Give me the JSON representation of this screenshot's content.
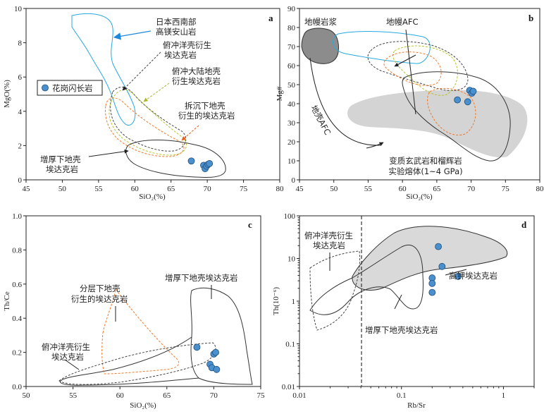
{
  "chart_data": [
    {
      "id": "a",
      "type": "scatter",
      "panel_label": "a",
      "xlabel": "SiO₂(%)",
      "ylabel": "MgO(%)",
      "xlim": [
        45,
        80
      ],
      "ylim": [
        0,
        10
      ],
      "xticks": [
        "45",
        "50",
        "55",
        "60",
        "65",
        "70",
        "75",
        "80"
      ],
      "yticks": [
        "0",
        "2",
        "4",
        "6",
        "8",
        "10"
      ],
      "legend": {
        "label": "花岗闪长岩",
        "placement": "left-middle"
      },
      "series": [
        {
          "name": "花岗闪长岩",
          "points": [
            [
              67.8,
              1.1
            ],
            [
              69.5,
              0.85
            ],
            [
              69.7,
              0.65
            ],
            [
              69.9,
              0.8
            ],
            [
              70.1,
              0.9
            ],
            [
              70.3,
              0.95
            ]
          ]
        }
      ],
      "fields": [
        {
          "label": "日本西南部高镁安山岩",
          "color": "#29a8e0",
          "style": "solid"
        },
        {
          "label": "俯冲洋壳衍生埃达克岩",
          "color": "#444444",
          "style": "dashed"
        },
        {
          "label": "俯冲大陆地壳衍生埃达克岩",
          "color": "#b5c42a",
          "style": "dashed"
        },
        {
          "label": "拆沉下地壳衍生的埃达克岩",
          "color": "#f07a2a",
          "style": "dashed"
        },
        {
          "label": "增厚下地壳埃达克岩",
          "color": "#333333",
          "style": "solid"
        }
      ],
      "annotations": [
        {
          "text": "日本西南部",
          "line": 1
        },
        {
          "text": "高镁安山岩",
          "line": 2
        },
        {
          "text": "俯冲洋壳衍生",
          "line": 1
        },
        {
          "text": "埃达克岩",
          "line": 2
        },
        {
          "text": "俯冲大陆地壳",
          "line": 1
        },
        {
          "text": "衍生埃达克岩",
          "line": 2
        },
        {
          "text": "拆沉下地壳",
          "line": 1
        },
        {
          "text": "衍生的埃达克岩",
          "line": 2
        },
        {
          "text": "增厚下地壳",
          "line": 1
        },
        {
          "text": "埃达克岩",
          "line": 2
        }
      ]
    },
    {
      "id": "b",
      "type": "scatter",
      "panel_label": "b",
      "xlabel": "SiO₂(%)",
      "ylabel": "Mg#",
      "xlim": [
        45,
        80
      ],
      "ylim": [
        0,
        90
      ],
      "xticks": [
        "45",
        "50",
        "55",
        "60",
        "65",
        "70",
        "75",
        "80"
      ],
      "yticks": [
        "0",
        "10",
        "20",
        "30",
        "40",
        "50",
        "60",
        "70",
        "80",
        "90"
      ],
      "series": [
        {
          "name": "花岗闪长岩",
          "points": [
            [
              68.0,
              42
            ],
            [
              69.5,
              41
            ],
            [
              69.8,
              47
            ],
            [
              70.1,
              45.5
            ],
            [
              70.3,
              46.5
            ]
          ]
        }
      ],
      "annotations": [
        {
          "text": "地幔岩浆"
        },
        {
          "text": "地幔AFC"
        },
        {
          "text": "地壳AFC"
        },
        {
          "text": "变质玄武岩和榴辉岩"
        },
        {
          "text": "实验熔体(1~4 GPa)"
        }
      ]
    },
    {
      "id": "c",
      "type": "scatter",
      "panel_label": "c",
      "xlabel": "SiO₂(%)",
      "ylabel": "Th/Ce",
      "xlim": [
        50,
        75
      ],
      "ylim": [
        0,
        1.0
      ],
      "xticks": [
        "50",
        "55",
        "60",
        "65",
        "70",
        "75"
      ],
      "yticks": [
        "0.0",
        "0.2",
        "0.4",
        "0.6",
        "0.8",
        "1.0"
      ],
      "series": [
        {
          "name": "花岗闪长岩",
          "points": [
            [
              68.2,
              0.23
            ],
            [
              69.6,
              0.13
            ],
            [
              69.8,
              0.11
            ],
            [
              70.0,
              0.19
            ],
            [
              70.2,
              0.2
            ],
            [
              70.3,
              0.1
            ]
          ]
        }
      ],
      "annotations": [
        {
          "text": "增厚下地壳埃达克岩"
        },
        {
          "text": "分层下地壳"
        },
        {
          "text": "衍生的埃达克岩"
        },
        {
          "text": "俯冲洋壳衍生"
        },
        {
          "text": "埃达克岩"
        }
      ]
    },
    {
      "id": "d",
      "type": "scatter",
      "panel_label": "d",
      "xlabel": "Rb/Sr",
      "ylabel": "Th(10⁻⁶)",
      "xscale": "log",
      "yscale": "log",
      "xlim": [
        0.01,
        2
      ],
      "ylim": [
        0.01,
        100
      ],
      "xticks": [
        "0.01",
        "0.1",
        "1"
      ],
      "yticks": [
        "0.01",
        "0.1",
        "1",
        "10",
        "100"
      ],
      "series": [
        {
          "name": "花岗闪长岩",
          "points": [
            [
              0.23,
              19
            ],
            [
              0.25,
              6.5
            ],
            [
              0.2,
              3.5
            ],
            [
              0.2,
              2.6
            ],
            [
              0.2,
              1.6
            ],
            [
              0.36,
              3.8
            ]
          ]
        }
      ],
      "annotations": [
        {
          "text": "俯冲洋壳衍生"
        },
        {
          "text": "埃达克岩"
        },
        {
          "text": "高钾埃达克岩"
        },
        {
          "text": "增厚下地壳埃达克岩"
        }
      ]
    }
  ]
}
